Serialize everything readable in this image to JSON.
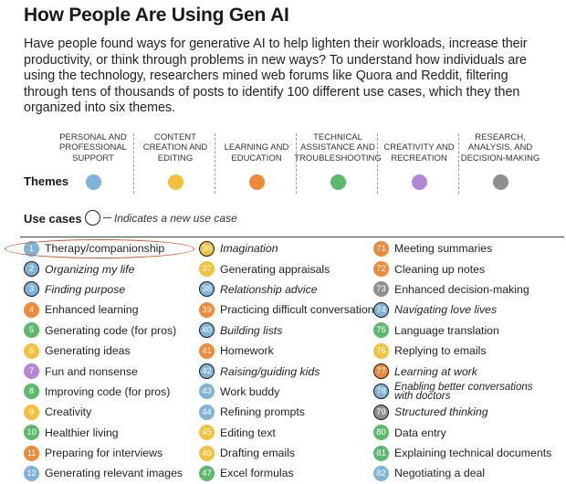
{
  "header": {
    "title": "How People Are Using Gen AI",
    "intro": "Have people found ways for generative AI to help lighten their workloads, increase their productivity, or think through problems in new ways? To understand how individuals are using the technology, researchers mined web forums like Quora and Reddit, filtering through tens of thousands of posts to identify 100 different use cases, which they then organized into six themes."
  },
  "themes_label": "Themes",
  "themes": [
    {
      "label": "Personal and professional support",
      "color": "#7fb3d9"
    },
    {
      "label": "Content creation and editing",
      "color": "#f2c23e"
    },
    {
      "label": "Learning and education",
      "color": "#ef8a3a"
    },
    {
      "label": "Technical assistance and troubleshooting",
      "color": "#5cb86a"
    },
    {
      "label": "Creativity and recreation",
      "color": "#b487d6"
    },
    {
      "label": "Research, analysis, and decision-making",
      "color": "#8f8f8f"
    }
  ],
  "use_cases_header": {
    "label": "Use cases",
    "legend": "Indicates a new use case"
  },
  "use_cases": [
    [
      {
        "num": "1",
        "label": "Therapy/companionship",
        "theme": 0,
        "is_new": false
      },
      {
        "num": "2",
        "label": "Organizing my life",
        "theme": 0,
        "is_new": true
      },
      {
        "num": "3",
        "label": "Finding purpose",
        "theme": 0,
        "is_new": true
      },
      {
        "num": "4",
        "label": "Enhanced learning",
        "theme": 2,
        "is_new": false
      },
      {
        "num": "5",
        "label": "Generating code (for pros)",
        "theme": 3,
        "is_new": false
      },
      {
        "num": "6",
        "label": "Generating ideas",
        "theme": 1,
        "is_new": false
      },
      {
        "num": "7",
        "label": "Fun and nonsense",
        "theme": 4,
        "is_new": false
      },
      {
        "num": "8",
        "label": "Improving code (for pros)",
        "theme": 3,
        "is_new": false
      },
      {
        "num": "9",
        "label": "Creativity",
        "theme": 1,
        "is_new": false
      },
      {
        "num": "10",
        "label": "Healthier living",
        "theme": 3,
        "is_new": false
      },
      {
        "num": "11",
        "label": "Preparing for interviews",
        "theme": 2,
        "is_new": false
      },
      {
        "num": "12",
        "label": "Generating relevant images",
        "theme": 0,
        "is_new": false
      }
    ],
    [
      {
        "num": "36",
        "label": "Imagination",
        "theme": 1,
        "is_new": true
      },
      {
        "num": "37",
        "label": "Generating appraisals",
        "theme": 1,
        "is_new": false
      },
      {
        "num": "38",
        "label": "Relationship advice",
        "theme": 0,
        "is_new": true
      },
      {
        "num": "39",
        "label": "Practicing difficult conversations",
        "theme": 2,
        "is_new": false
      },
      {
        "num": "40",
        "label": "Building lists",
        "theme": 0,
        "is_new": true
      },
      {
        "num": "41",
        "label": "Homework",
        "theme": 2,
        "is_new": false
      },
      {
        "num": "42",
        "label": "Raising/guiding kids",
        "theme": 0,
        "is_new": true
      },
      {
        "num": "43",
        "label": "Work buddy",
        "theme": 0,
        "is_new": false
      },
      {
        "num": "44",
        "label": "Refining prompts",
        "theme": 0,
        "is_new": false
      },
      {
        "num": "45",
        "label": "Editing text",
        "theme": 1,
        "is_new": false
      },
      {
        "num": "46",
        "label": "Drafting emails",
        "theme": 1,
        "is_new": false
      },
      {
        "num": "47",
        "label": "Excel formulas",
        "theme": 3,
        "is_new": false
      }
    ],
    [
      {
        "num": "71",
        "label": "Meeting summaries",
        "theme": 2,
        "is_new": false
      },
      {
        "num": "72",
        "label": "Cleaning up notes",
        "theme": 2,
        "is_new": false
      },
      {
        "num": "73",
        "label": "Enhanced decision-making",
        "theme": 5,
        "is_new": false
      },
      {
        "num": "74",
        "label": "Navigating love lives",
        "theme": 0,
        "is_new": true
      },
      {
        "num": "75",
        "label": "Language translation",
        "theme": 3,
        "is_new": false
      },
      {
        "num": "76",
        "label": "Replying to emails",
        "theme": 1,
        "is_new": false
      },
      {
        "num": "77",
        "label": "Learning at work",
        "theme": 2,
        "is_new": true
      },
      {
        "num": "78",
        "label": "Enabling better conversations with doctors",
        "theme": 0,
        "is_new": true
      },
      {
        "num": "79",
        "label": "Structured thinking",
        "theme": 5,
        "is_new": true
      },
      {
        "num": "80",
        "label": "Data entry",
        "theme": 3,
        "is_new": false
      },
      {
        "num": "81",
        "label": "Explaining technical documents",
        "theme": 3,
        "is_new": false
      },
      {
        "num": "82",
        "label": "Negotiating a deal",
        "theme": 0,
        "is_new": false
      }
    ]
  ]
}
